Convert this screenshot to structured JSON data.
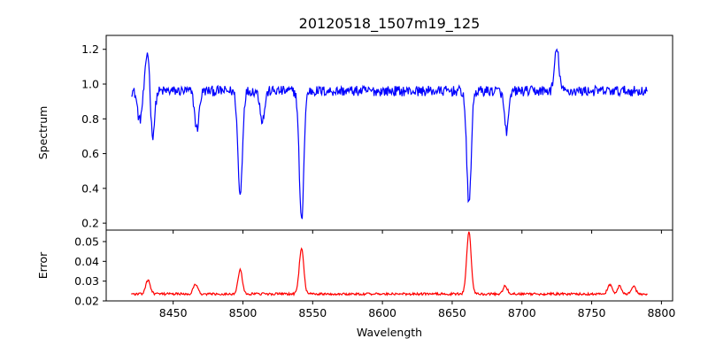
{
  "chart_data": [
    {
      "type": "line",
      "title": "20120518_1507m19_125",
      "xlabel": "",
      "ylabel": "Spectrum",
      "xlim": [
        8402,
        8808
      ],
      "ylim": [
        0.16,
        1.28
      ],
      "x_ticks": [
        8450,
        8500,
        8550,
        8600,
        8650,
        8700,
        8750,
        8800
      ],
      "y_ticks": [
        0.2,
        0.4,
        0.6,
        0.8,
        1.0,
        1.2
      ],
      "y_tick_labels": [
        "0.2",
        "0.4",
        "0.6",
        "0.8",
        "1.0",
        "1.2"
      ],
      "x_tick_labels_visible": false,
      "grid": false,
      "legend": "none",
      "series": [
        {
          "color": "#0000ff",
          "x_range": [
            8420,
            8790
          ],
          "continuum": 0.96,
          "noise_amplitude": 0.03,
          "features": [
            {
              "x": 8426,
              "value": 0.79
            },
            {
              "x": 8432,
              "value": 1.22
            },
            {
              "x": 8435,
              "value": 0.67
            },
            {
              "x": 8467,
              "value": 0.74
            },
            {
              "x": 8498,
              "value": 0.36
            },
            {
              "x": 8514,
              "value": 0.79
            },
            {
              "x": 8542,
              "value": 0.21
            },
            {
              "x": 8662,
              "value": 0.31
            },
            {
              "x": 8689,
              "value": 0.73
            },
            {
              "x": 8725,
              "value": 1.2
            }
          ]
        }
      ]
    },
    {
      "type": "line",
      "title": "",
      "xlabel": "Wavelength",
      "ylabel": "Error",
      "xlim": [
        8402,
        8808
      ],
      "ylim": [
        0.02,
        0.0558
      ],
      "x_ticks": [
        8450,
        8500,
        8550,
        8600,
        8650,
        8700,
        8750,
        8800
      ],
      "x_tick_labels": [
        "8450",
        "8500",
        "8550",
        "8600",
        "8650",
        "8700",
        "8750",
        "8800"
      ],
      "y_ticks": [
        0.02,
        0.03,
        0.04,
        0.05
      ],
      "y_tick_labels": [
        "0.02",
        "0.03",
        "0.04",
        "0.05"
      ],
      "grid": false,
      "legend": "none",
      "series": [
        {
          "color": "#ff0000",
          "x_range": [
            8420,
            8790
          ],
          "baseline": 0.0235,
          "noise_amplitude": 0.0006,
          "features": [
            {
              "x": 8432,
              "value": 0.0305
            },
            {
              "x": 8466,
              "value": 0.0285
            },
            {
              "x": 8498,
              "value": 0.0355
            },
            {
              "x": 8542,
              "value": 0.047
            },
            {
              "x": 8662,
              "value": 0.055
            },
            {
              "x": 8688,
              "value": 0.0275
            },
            {
              "x": 8763,
              "value": 0.028
            },
            {
              "x": 8770,
              "value": 0.0275
            },
            {
              "x": 8780,
              "value": 0.0275
            }
          ]
        }
      ]
    }
  ]
}
